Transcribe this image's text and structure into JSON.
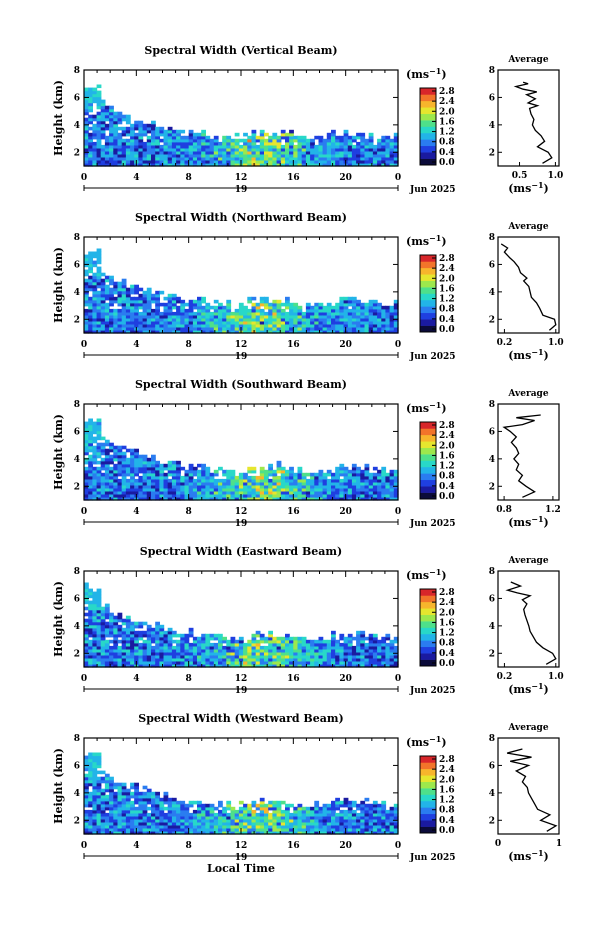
{
  "figure": {
    "time_axis_label": "Local Time"
  },
  "colorbar": {
    "unit_prefix": "(ms",
    "unit_exp": "−1",
    "unit_suffix": ")",
    "ticks": [
      "2.8",
      "2.4",
      "2.0",
      "1.6",
      "1.2",
      "0.8",
      "0.4",
      "0.0"
    ],
    "colors": [
      "#0b0b3a",
      "#1a1aa0",
      "#1f3fe0",
      "#2a7cf0",
      "#22b4e8",
      "#28d8c8",
      "#4ee08a",
      "#9de84c",
      "#e6e62e",
      "#f7b52c",
      "#f2742a",
      "#d8262a"
    ]
  },
  "chart_data": [
    {
      "type": "heatmap",
      "title": "Spectral Width (Vertical Beam)",
      "ylabel": "Height (km)",
      "xlabel": "",
      "x_ticks": [
        "0",
        "4",
        "8",
        "12",
        "16",
        "20",
        "0"
      ],
      "y_ticks": [
        "2",
        "4",
        "6",
        "8"
      ],
      "date_day": "19",
      "date_month": "Jun 2025",
      "xlim": [
        0,
        24
      ],
      "ylim": [
        1,
        8
      ],
      "colorbar_range": [
        0.0,
        2.8
      ],
      "average": {
        "title": "Average",
        "xlabel_prefix": "(ms",
        "xlabel_exp": "−1",
        "xlabel_suffix": ")",
        "x_ticks": [
          "0.5",
          "1.0"
        ],
        "xlim": [
          0.2,
          1.05
        ],
        "y_ticks": [
          "2",
          "4",
          "6",
          "8"
        ],
        "ylim": [
          1,
          8
        ],
        "profile": [
          [
            0.82,
            1.2
          ],
          [
            0.95,
            1.6
          ],
          [
            0.9,
            2.0
          ],
          [
            0.75,
            2.4
          ],
          [
            0.85,
            2.8
          ],
          [
            0.8,
            3.2
          ],
          [
            0.72,
            3.6
          ],
          [
            0.68,
            4.0
          ],
          [
            0.7,
            4.4
          ],
          [
            0.66,
            4.8
          ],
          [
            0.64,
            5.2
          ],
          [
            0.75,
            5.4
          ],
          [
            0.62,
            5.6
          ],
          [
            0.72,
            5.9
          ],
          [
            0.6,
            6.2
          ],
          [
            0.74,
            6.4
          ],
          [
            0.55,
            6.6
          ],
          [
            0.45,
            6.8
          ],
          [
            0.62,
            7.0
          ],
          [
            0.55,
            7.1
          ]
        ]
      }
    },
    {
      "type": "heatmap",
      "title": "Spectral Width (Northward Beam)",
      "ylabel": "Height (km)",
      "xlabel": "",
      "x_ticks": [
        "0",
        "4",
        "8",
        "12",
        "16",
        "20",
        "0"
      ],
      "y_ticks": [
        "2",
        "4",
        "6",
        "8"
      ],
      "date_day": "19",
      "date_month": "Jun 2025",
      "xlim": [
        0,
        24
      ],
      "ylim": [
        1,
        8
      ],
      "colorbar_range": [
        0.0,
        2.8
      ],
      "average": {
        "title": "Average",
        "xlabel_prefix": "(ms",
        "xlabel_exp": "−1",
        "xlabel_suffix": ")",
        "x_ticks": [
          "0.2",
          "1.0"
        ],
        "xlim": [
          0.1,
          1.05
        ],
        "y_ticks": [
          "2",
          "4",
          "6",
          "8"
        ],
        "ylim": [
          1,
          8
        ],
        "profile": [
          [
            0.9,
            1.2
          ],
          [
            1.0,
            1.6
          ],
          [
            0.98,
            2.0
          ],
          [
            0.8,
            2.3
          ],
          [
            0.75,
            2.8
          ],
          [
            0.7,
            3.2
          ],
          [
            0.62,
            3.6
          ],
          [
            0.6,
            4.0
          ],
          [
            0.58,
            4.4
          ],
          [
            0.5,
            4.8
          ],
          [
            0.55,
            5.0
          ],
          [
            0.45,
            5.4
          ],
          [
            0.42,
            5.8
          ],
          [
            0.35,
            6.2
          ],
          [
            0.28,
            6.5
          ],
          [
            0.2,
            6.9
          ],
          [
            0.25,
            7.2
          ],
          [
            0.15,
            7.5
          ]
        ]
      }
    },
    {
      "type": "heatmap",
      "title": "Spectral Width (Southward Beam)",
      "ylabel": "Height (km)",
      "xlabel": "",
      "x_ticks": [
        "0",
        "4",
        "8",
        "12",
        "16",
        "20",
        "0"
      ],
      "y_ticks": [
        "2",
        "4",
        "6",
        "8"
      ],
      "date_day": "19",
      "date_month": "Jun 2025",
      "xlim": [
        0,
        24
      ],
      "ylim": [
        1,
        8
      ],
      "colorbar_range": [
        0.0,
        2.8
      ],
      "average": {
        "title": "Average",
        "xlabel_prefix": "(ms",
        "xlabel_exp": "−1",
        "xlabel_suffix": ")",
        "x_ticks": [
          "0.8",
          "1.2"
        ],
        "xlim": [
          0.75,
          1.25
        ],
        "y_ticks": [
          "2",
          "4",
          "6",
          "8"
        ],
        "ylim": [
          1,
          8
        ],
        "profile": [
          [
            0.95,
            1.2
          ],
          [
            1.05,
            1.6
          ],
          [
            0.98,
            2.0
          ],
          [
            0.92,
            2.4
          ],
          [
            0.95,
            2.8
          ],
          [
            0.9,
            3.2
          ],
          [
            0.92,
            3.6
          ],
          [
            0.88,
            4.0
          ],
          [
            0.92,
            4.4
          ],
          [
            0.9,
            4.8
          ],
          [
            0.86,
            5.2
          ],
          [
            0.9,
            5.6
          ],
          [
            0.85,
            6.0
          ],
          [
            0.8,
            6.3
          ],
          [
            0.95,
            6.5
          ],
          [
            1.05,
            6.8
          ],
          [
            0.9,
            7.0
          ],
          [
            1.1,
            7.2
          ]
        ]
      }
    },
    {
      "type": "heatmap",
      "title": "Spectral Width (Eastward Beam)",
      "ylabel": "Height (km)",
      "xlabel": "",
      "x_ticks": [
        "0",
        "4",
        "8",
        "12",
        "16",
        "20",
        "0"
      ],
      "y_ticks": [
        "2",
        "4",
        "6",
        "8"
      ],
      "date_day": "19",
      "date_month": "Jun 2025",
      "xlim": [
        0,
        24
      ],
      "ylim": [
        1,
        8
      ],
      "colorbar_range": [
        0.0,
        2.8
      ],
      "average": {
        "title": "Average",
        "xlabel_prefix": "(ms",
        "xlabel_exp": "−1",
        "xlabel_suffix": ")",
        "x_ticks": [
          "0.2",
          "1.0"
        ],
        "xlim": [
          0.1,
          1.05
        ],
        "y_ticks": [
          "2",
          "4",
          "6",
          "8"
        ],
        "ylim": [
          1,
          8
        ],
        "profile": [
          [
            0.85,
            1.2
          ],
          [
            1.0,
            1.6
          ],
          [
            0.95,
            2.0
          ],
          [
            0.8,
            2.4
          ],
          [
            0.7,
            2.8
          ],
          [
            0.65,
            3.2
          ],
          [
            0.6,
            3.6
          ],
          [
            0.58,
            4.0
          ],
          [
            0.55,
            4.4
          ],
          [
            0.52,
            4.8
          ],
          [
            0.5,
            5.2
          ],
          [
            0.55,
            5.6
          ],
          [
            0.48,
            5.9
          ],
          [
            0.6,
            6.2
          ],
          [
            0.4,
            6.4
          ],
          [
            0.25,
            6.6
          ],
          [
            0.45,
            6.9
          ],
          [
            0.3,
            7.2
          ]
        ]
      }
    },
    {
      "type": "heatmap",
      "title": "Spectral Width (Westward Beam)",
      "ylabel": "Height (km)",
      "xlabel": "Local Time",
      "x_ticks": [
        "0",
        "4",
        "8",
        "12",
        "16",
        "20",
        "0"
      ],
      "y_ticks": [
        "2",
        "4",
        "6",
        "8"
      ],
      "date_day": "19",
      "date_month": "Jun 2025",
      "xlim": [
        0,
        24
      ],
      "ylim": [
        1,
        8
      ],
      "colorbar_range": [
        0.0,
        2.8
      ],
      "average": {
        "title": "Average",
        "xlabel_prefix": "(ms",
        "xlabel_exp": "−1",
        "xlabel_suffix": ")",
        "x_ticks": [
          "0",
          "1"
        ],
        "xlim": [
          0,
          1
        ],
        "y_ticks": [
          "2",
          "4",
          "6",
          "8"
        ],
        "ylim": [
          1,
          8
        ],
        "profile": [
          [
            0.8,
            1.2
          ],
          [
            0.95,
            1.6
          ],
          [
            0.7,
            2.0
          ],
          [
            0.85,
            2.4
          ],
          [
            0.65,
            2.8
          ],
          [
            0.6,
            3.2
          ],
          [
            0.55,
            3.6
          ],
          [
            0.5,
            4.0
          ],
          [
            0.48,
            4.4
          ],
          [
            0.4,
            4.8
          ],
          [
            0.45,
            5.2
          ],
          [
            0.3,
            5.6
          ],
          [
            0.5,
            6.0
          ],
          [
            0.2,
            6.3
          ],
          [
            0.55,
            6.6
          ],
          [
            0.15,
            6.9
          ],
          [
            0.4,
            7.2
          ]
        ]
      }
    }
  ]
}
